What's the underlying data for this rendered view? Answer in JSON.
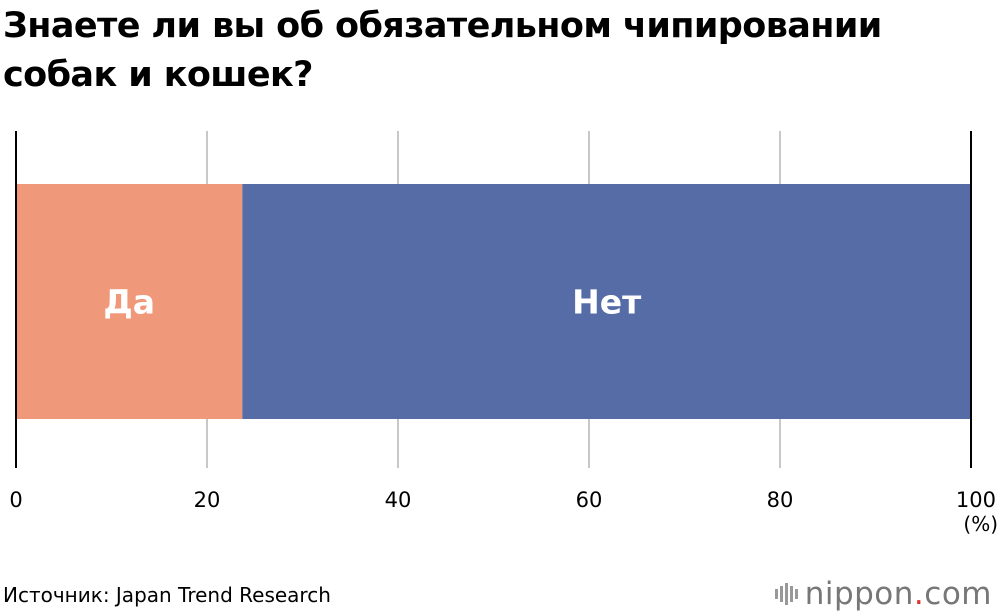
{
  "title": "Знаете ли вы об обязательном чипировании собак и кошек?",
  "unit_label": "(%)",
  "source": "Источник: Japan Trend Research",
  "logo": {
    "name": "nippon",
    "dot": ".",
    "tld": "com"
  },
  "colors": {
    "yes": "#f0997a",
    "no": "#566ca7",
    "grid": "#c8c8c8",
    "axis": "#000000",
    "bar_label": "#ffffff"
  },
  "chart_data": {
    "type": "bar",
    "orientation": "horizontal",
    "stacked": true,
    "xlim": [
      0,
      100
    ],
    "x_ticks": [
      0,
      20,
      40,
      60,
      80,
      100
    ],
    "grid": true,
    "series": [
      {
        "name": "Да",
        "values": [
          23.7
        ]
      },
      {
        "name": "Нет",
        "values": [
          76.3
        ]
      }
    ]
  }
}
